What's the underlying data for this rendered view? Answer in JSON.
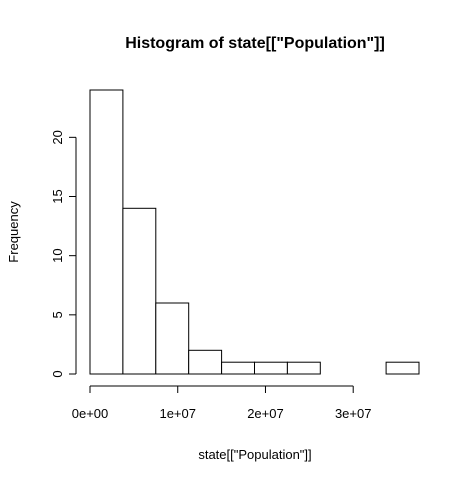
{
  "chart_data": {
    "type": "bar",
    "title": "Histogram of state[[\"Population\"]]",
    "xlabel": "state[[\"Population\"]]",
    "ylabel": "Frequency",
    "bin_edges": [
      0,
      3750000,
      7500000,
      11250000,
      15000000,
      18750000,
      22500000,
      26250000,
      30000000,
      33750000,
      37500000
    ],
    "values": [
      24,
      14,
      6,
      2,
      1,
      1,
      1,
      0,
      0,
      1
    ],
    "xlim": [
      0,
      37500000
    ],
    "ylim": [
      0,
      24
    ],
    "x_ticks": [
      0,
      10000000,
      20000000,
      30000000
    ],
    "x_tick_labels": [
      "0e+00",
      "1e+07",
      "2e+07",
      "3e+07"
    ],
    "y_ticks": [
      0,
      5,
      10,
      15,
      20
    ],
    "y_tick_labels": [
      "0",
      "5",
      "10",
      "15",
      "20"
    ],
    "grid": false,
    "bar_fill": "#ffffff",
    "bar_stroke": "#000000"
  }
}
